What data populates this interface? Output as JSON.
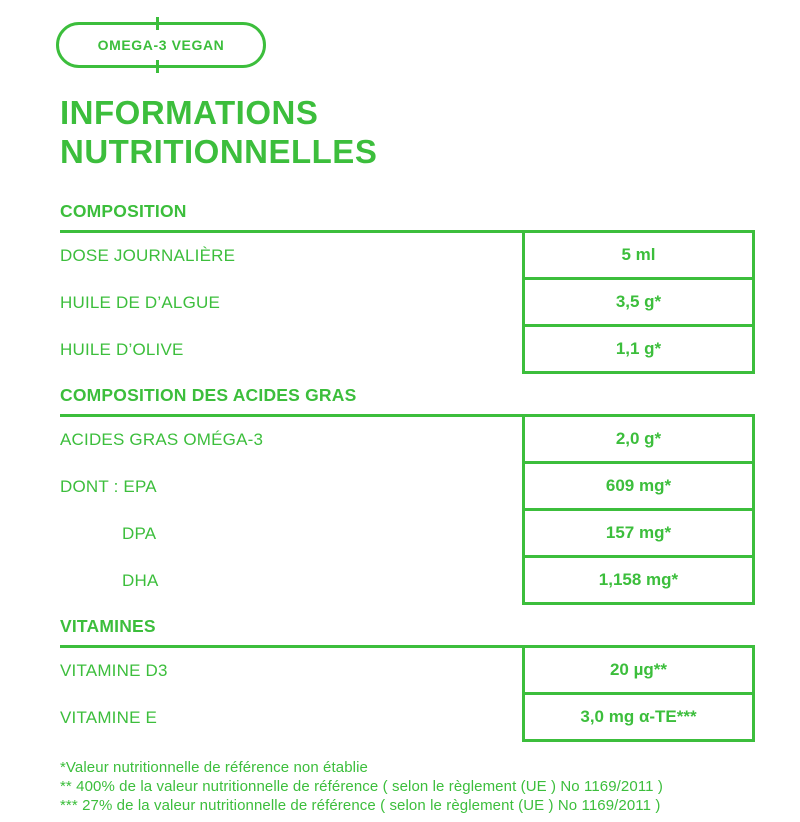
{
  "colors": {
    "green": "#3cbe3c"
  },
  "badge": {
    "label": "OMEGA-3 VEGAN"
  },
  "title": {
    "line1": "INFORMATIONS",
    "line2": "NUTRITIONNELLES"
  },
  "sections": [
    {
      "heading": "COMPOSITION",
      "rows": [
        {
          "label": "DOSE JOURNALIÈRE",
          "value": "5 ml"
        },
        {
          "label": "HUILE DE D’ALGUE",
          "value": "3,5 g*"
        },
        {
          "label": "HUILE D’OLIVE",
          "value": "1,1 g*"
        }
      ]
    },
    {
      "heading": "COMPOSITION DES ACIDES GRAS",
      "rows": [
        {
          "label": "ACIDES GRAS OMÉGA-3",
          "value": "2,0 g*"
        },
        {
          "label": "DONT : EPA",
          "value": "609 mg*"
        },
        {
          "label": "DPA",
          "value": "157 mg*"
        },
        {
          "label": "DHA",
          "value": "1,158 mg*"
        }
      ]
    },
    {
      "heading": "VITAMINES",
      "rows": [
        {
          "label": "VITAMINE D3",
          "value": "20 µg**"
        },
        {
          "label": "VITAMINE E",
          "value": "3,0 mg α-TE***"
        }
      ]
    }
  ],
  "footnotes": [
    "*Valeur nutritionnelle de référence non établie",
    "** 400% de la valeur nutritionnelle de référence ( selon le règlement (UE ) No 1169/2011 )",
    "*** 27% de la valeur nutritionnelle de référence ( selon le règlement (UE ) No 1169/2011 )"
  ]
}
